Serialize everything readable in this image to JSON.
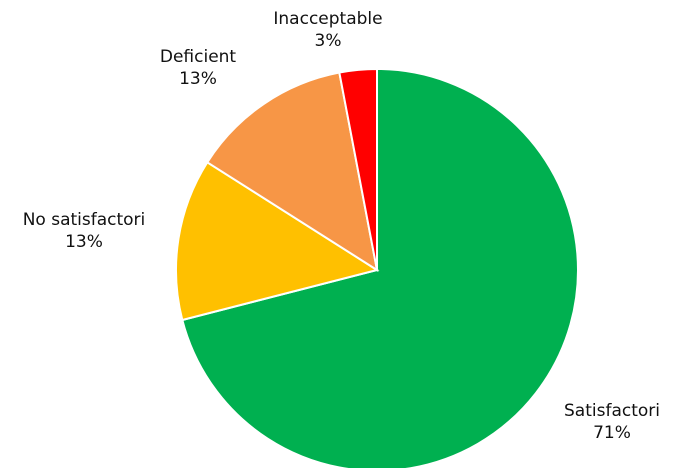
{
  "chart_data": {
    "type": "pie",
    "title": "",
    "legend": "none",
    "slices": [
      {
        "label": "Satisfactori",
        "value": 71,
        "value_label": "71%",
        "color": "#00b050"
      },
      {
        "label": "No satisfactori",
        "value": 13,
        "value_label": "13%",
        "color": "#ffc000"
      },
      {
        "label": "Deficient",
        "value": 13,
        "value_label": "13%",
        "color": "#f79646"
      },
      {
        "label": "Inacceptable",
        "value": 3,
        "value_label": "3%",
        "color": "#ff0000"
      }
    ]
  }
}
